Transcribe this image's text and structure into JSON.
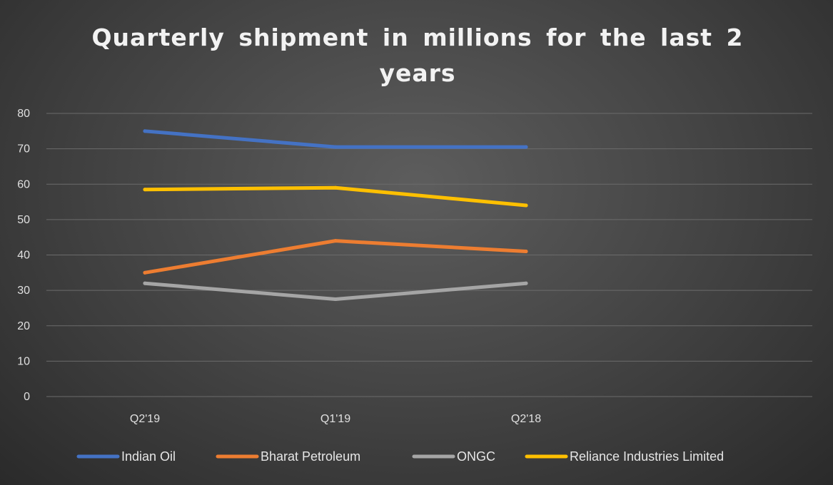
{
  "chart_data": {
    "type": "line",
    "title": "Quarterly shipment in millions for the last 2 years",
    "categories": [
      "Q2'19",
      "Q1'19",
      "Q2'18"
    ],
    "ylim": [
      0,
      80
    ],
    "yticks": [
      0,
      10,
      20,
      30,
      40,
      50,
      60,
      70,
      80
    ],
    "grid": true,
    "legend_position": "bottom",
    "series": [
      {
        "name": "Indian Oil",
        "color": "#4472c4",
        "values": [
          75,
          70.5,
          70.5
        ]
      },
      {
        "name": "Bharat Petroleum",
        "color": "#ed7d31",
        "values": [
          35,
          44,
          41
        ]
      },
      {
        "name": "ONGC",
        "color": "#a5a5a5",
        "values": [
          32,
          27.5,
          32
        ]
      },
      {
        "name": "Reliance Industries Limited",
        "color": "#ffc000",
        "values": [
          58.5,
          59,
          54
        ]
      }
    ]
  }
}
